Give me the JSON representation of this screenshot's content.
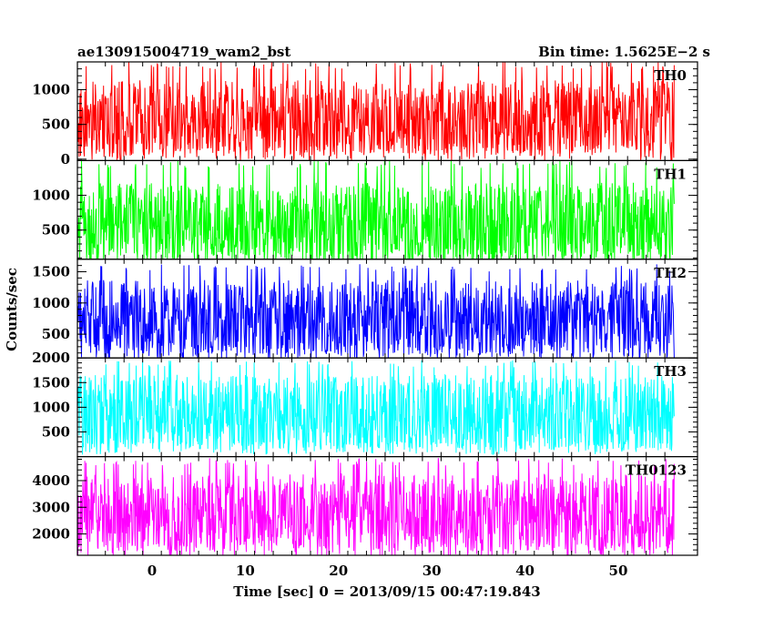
{
  "header": {
    "left_title": "ae130915004719_wam2_bst",
    "right_title": "Bin time: 1.5625E−2 s"
  },
  "ylabel": "Counts/sec",
  "xlabel": "Time [sec] 0 = 2013/09/15 00:47:19.843",
  "chart_data": {
    "type": "line",
    "x_range": [
      -8.0,
      56.0
    ],
    "xlim": [
      -8.0,
      58.5
    ],
    "x_ticks": [
      0,
      10,
      20,
      30,
      40,
      50
    ],
    "x_tick_labels": [
      "0",
      "10",
      "20",
      "30",
      "40",
      "50"
    ],
    "panels": [
      {
        "label": "TH0",
        "color": "#ff0000",
        "ylim": [
          -20,
          1400
        ],
        "y_ticks": [
          0,
          500,
          1000
        ],
        "y_tick_labels": [
          "0",
          "500",
          "1000"
        ],
        "band": [
          100,
          1400
        ],
        "mean": 550
      },
      {
        "label": "TH1",
        "color": "#00ff00",
        "ylim": [
          80,
          1500
        ],
        "y_ticks": [
          500,
          1000
        ],
        "y_tick_labels": [
          "500",
          "1000"
        ],
        "band": [
          120,
          1500
        ],
        "mean": 560
      },
      {
        "label": "TH2",
        "color": "#0000ff",
        "ylim": [
          120,
          1700
        ],
        "y_ticks": [
          500,
          1000,
          1500
        ],
        "y_tick_labels": [
          "500",
          "1000",
          "1500"
        ],
        "band": [
          180,
          1620
        ],
        "mean": 720
      },
      {
        "label": "TH3",
        "color": "#00ffff",
        "ylim": [
          0,
          2000
        ],
        "y_ticks": [
          500,
          1000,
          1500,
          2000
        ],
        "y_tick_labels": [
          "500",
          "1000",
          "1500",
          "2000"
        ],
        "band": [
          150,
          1950
        ],
        "mean": 850
      },
      {
        "label": "TH0123",
        "color": "#ff00ff",
        "ylim": [
          1200,
          4900
        ],
        "y_ticks": [
          2000,
          3000,
          4000
        ],
        "y_tick_labels": [
          "2000",
          "3000",
          "4000"
        ],
        "band": [
          1350,
          4850
        ],
        "mean": 2700
      }
    ]
  }
}
